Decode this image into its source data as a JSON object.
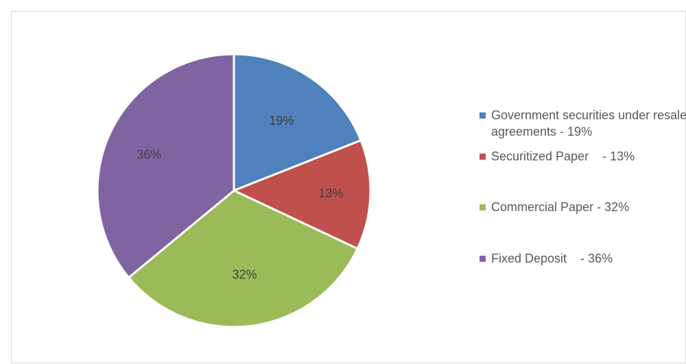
{
  "chart_data": {
    "type": "pie",
    "title": "",
    "legend_position": "right",
    "slices": [
      {
        "label": "Government securities under resale agreements - 19%",
        "value": 19,
        "data_label": "19%",
        "color": "#4f81bd"
      },
      {
        "label": "Securitized Paper    - 13%",
        "value": 13,
        "data_label": "13%",
        "color": "#c0504d"
      },
      {
        "label": "Commercial Paper - 32%",
        "value": 32,
        "data_label": "32%",
        "color": "#9bbb59"
      },
      {
        "label": "Fixed Deposit    - 36%",
        "value": 36,
        "data_label": "36%",
        "color": "#8064a2"
      }
    ]
  }
}
